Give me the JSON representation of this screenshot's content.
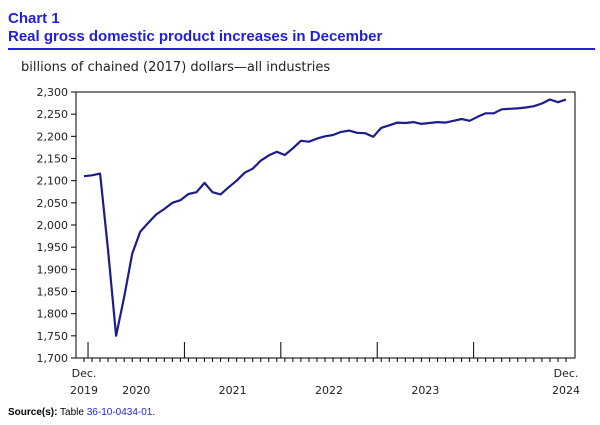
{
  "header": {
    "chart_number": "Chart 1",
    "title": "Real gross domestic product increases in December",
    "unit_label": "billions of chained (2017) dollars—all industries"
  },
  "source": {
    "label": "Source(s):",
    "prefix": " Table ",
    "table_link": "36-10-0434-01",
    "suffix": "."
  },
  "colors": {
    "accent": "#1f1fe0",
    "line": "#1c1c8c"
  },
  "chart_data": {
    "type": "line",
    "title": "Real gross domestic product increases in December",
    "ylabel": "billions of chained (2017) dollars—all industries",
    "ylim": [
      1700,
      2300
    ],
    "yticks": [
      {
        "value": 1700,
        "label": "1,700"
      },
      {
        "value": 1750,
        "label": "1,750"
      },
      {
        "value": 1800,
        "label": "1,800"
      },
      {
        "value": 1850,
        "label": "1,850"
      },
      {
        "value": 1900,
        "label": "1,900"
      },
      {
        "value": 1950,
        "label": "1,950"
      },
      {
        "value": 2000,
        "label": "2,000"
      },
      {
        "value": 2050,
        "label": "2,050"
      },
      {
        "value": 2100,
        "label": "2,100"
      },
      {
        "value": 2150,
        "label": "2,150"
      },
      {
        "value": 2200,
        "label": "2,200"
      },
      {
        "value": 2250,
        "label": "2,250"
      },
      {
        "value": 2300,
        "label": "2,300"
      }
    ],
    "x_labels": [
      {
        "index": 0,
        "line1": "Dec.",
        "line2": "2019"
      },
      {
        "index": 6.5,
        "line1": "",
        "line2": "2020"
      },
      {
        "index": 18.5,
        "line1": "",
        "line2": "2021"
      },
      {
        "index": 30.5,
        "line1": "",
        "line2": "2022"
      },
      {
        "index": 42.5,
        "line1": "",
        "line2": "2023"
      },
      {
        "index": 60,
        "line1": "Dec.",
        "line2": "2024"
      }
    ],
    "year_boundaries": [
      0.5,
      12.5,
      24.5,
      36.5,
      48.5
    ],
    "series": [
      {
        "name": "Real GDP, all industries",
        "x_start": "Dec. 2019",
        "x_end": "Dec. 2024",
        "values": [
          2110,
          2112,
          2116,
          1942,
          1750,
          1838,
          1935,
          1985,
          2005,
          2024,
          2036,
          2050,
          2056,
          2070,
          2074,
          2095,
          2074,
          2069,
          2085,
          2100,
          2118,
          2127,
          2145,
          2157,
          2165,
          2158,
          2173,
          2190,
          2188,
          2195,
          2200,
          2203,
          2210,
          2213,
          2208,
          2207,
          2199,
          2219,
          2225,
          2231,
          2230,
          2232,
          2228,
          2230,
          2232,
          2231,
          2235,
          2239,
          2235,
          2244,
          2252,
          2252,
          2261,
          2262,
          2263,
          2265,
          2268,
          2274,
          2283,
          2277,
          2283
        ]
      }
    ]
  }
}
